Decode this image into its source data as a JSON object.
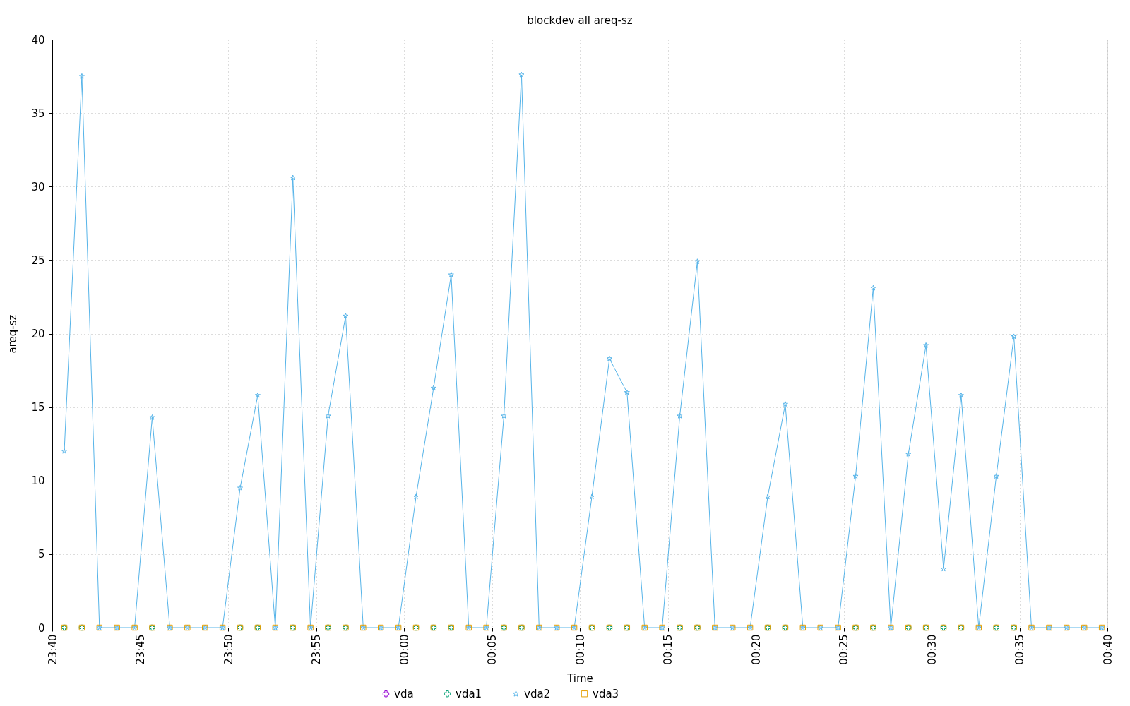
{
  "chart_data": {
    "type": "line",
    "title": "blockdev all areq-sz",
    "xlabel": "Time",
    "ylabel": "areq-sz",
    "x": [
      "2000-01-01T23:40:41",
      "2000-01-01T23:41:41",
      "2000-01-01T23:42:41",
      "2000-01-01T23:43:41",
      "2000-01-01T23:44:41",
      "2000-01-01T23:45:41",
      "2000-01-01T23:46:41",
      "2000-01-01T23:47:41",
      "2000-01-01T23:48:41",
      "2000-01-01T23:49:41",
      "2000-01-01T23:50:41",
      "2000-01-01T23:51:41",
      "2000-01-01T23:52:41",
      "2000-01-01T23:53:41",
      "2000-01-01T23:54:41",
      "2000-01-01T23:55:41",
      "2000-01-01T23:56:41",
      "2000-01-01T23:57:41",
      "2000-01-01T23:58:41",
      "2000-01-01T23:59:41",
      "2000-01-02T00:00:41",
      "2000-01-02T00:01:41",
      "2000-01-02T00:02:41",
      "2000-01-02T00:03:41",
      "2000-01-02T00:04:41",
      "2000-01-02T00:05:41",
      "2000-01-02T00:06:41",
      "2000-01-02T00:07:41",
      "2000-01-02T00:08:41",
      "2000-01-02T00:09:41",
      "2000-01-02T00:10:41",
      "2000-01-02T00:11:41",
      "2000-01-02T00:12:41",
      "2000-01-02T00:13:41",
      "2000-01-02T00:14:41",
      "2000-01-02T00:15:41",
      "2000-01-02T00:16:41",
      "2000-01-02T00:17:41",
      "2000-01-02T00:18:41",
      "2000-01-02T00:19:41",
      "2000-01-02T00:20:41",
      "2000-01-02T00:21:41",
      "2000-01-02T00:22:41",
      "2000-01-02T00:23:41",
      "2000-01-02T00:24:41",
      "2000-01-02T00:25:41",
      "2000-01-02T00:26:41",
      "2000-01-02T00:27:41",
      "2000-01-02T00:28:41",
      "2000-01-02T00:29:41",
      "2000-01-02T00:30:41",
      "2000-01-02T00:31:41",
      "2000-01-02T00:32:41",
      "2000-01-02T00:33:41",
      "2000-01-02T00:34:41",
      "2000-01-02T00:35:41",
      "2000-01-02T00:36:41",
      "2000-01-02T00:37:41",
      "2000-01-02T00:38:41",
      "2000-01-02T00:39:41"
    ],
    "xlim": [
      "2000-01-01T23:40",
      "2000-01-02T00:40"
    ],
    "xticks": [
      {
        "value": "2000-01-01T23:40",
        "label": "23:40"
      },
      {
        "value": "2000-01-01T23:45",
        "label": "23:45"
      },
      {
        "value": "2000-01-01T23:50",
        "label": "23:50"
      },
      {
        "value": "2000-01-01T23:55",
        "label": "23:55"
      },
      {
        "value": "2000-01-02T00:00",
        "label": "00:00"
      },
      {
        "value": "2000-01-02T00:05",
        "label": "00:05"
      },
      {
        "value": "2000-01-02T00:10",
        "label": "00:10"
      },
      {
        "value": "2000-01-02T00:15",
        "label": "00:15"
      },
      {
        "value": "2000-01-02T00:20",
        "label": "00:20"
      },
      {
        "value": "2000-01-02T00:25",
        "label": "00:25"
      },
      {
        "value": "2000-01-02T00:30",
        "label": "00:30"
      },
      {
        "value": "2000-01-02T00:35",
        "label": "00:35"
      },
      {
        "value": "2000-01-02T00:40",
        "label": "00:40"
      }
    ],
    "ylim": [
      0,
      40
    ],
    "yticks": [
      0,
      5,
      10,
      15,
      20,
      25,
      30,
      35,
      40
    ],
    "grid": true,
    "legend": "bottom",
    "line_style": "solid",
    "series": [
      {
        "name": "vda",
        "color": "#9400d3",
        "marker": "cross",
        "values": [
          null,
          null,
          null,
          null,
          null,
          null,
          null,
          null,
          null,
          null,
          null,
          null,
          null,
          null,
          null,
          null,
          null,
          null,
          null,
          null,
          null,
          null,
          null,
          null,
          null,
          null,
          null,
          null,
          null,
          null,
          null,
          null,
          null,
          null,
          null,
          null,
          null,
          null,
          null,
          null,
          null,
          null,
          null,
          null,
          null,
          null,
          null,
          null,
          null,
          null,
          null,
          null,
          null,
          null,
          null,
          null,
          null,
          null,
          null,
          null
        ]
      },
      {
        "name": "vda1",
        "color": "#009e73",
        "type": "scatter",
        "marker": "cross",
        "values": [
          0,
          0,
          null,
          null,
          null,
          0,
          null,
          null,
          null,
          null,
          0,
          0,
          null,
          0,
          null,
          0,
          0,
          null,
          null,
          null,
          0,
          0,
          0,
          null,
          null,
          0,
          0,
          null,
          null,
          null,
          0,
          0,
          0,
          null,
          null,
          0,
          0,
          null,
          null,
          null,
          0,
          0,
          null,
          null,
          null,
          0,
          0,
          null,
          0,
          0,
          0,
          0,
          null,
          0,
          0,
          null,
          null,
          null,
          null,
          null
        ]
      },
      {
        "name": "vda2",
        "color": "#56b4e9",
        "marker": "star",
        "values": [
          12.0,
          37.5,
          0,
          0,
          0,
          14.3,
          0,
          0,
          0,
          0,
          9.5,
          15.8,
          0,
          30.6,
          0,
          14.4,
          21.2,
          0,
          0,
          0,
          8.9,
          16.3,
          24.0,
          0,
          0,
          14.4,
          37.6,
          0,
          0,
          0,
          8.9,
          18.3,
          16.0,
          0,
          0,
          14.4,
          24.9,
          0,
          0,
          0,
          8.9,
          15.2,
          0,
          0,
          0,
          10.3,
          23.1,
          0,
          11.8,
          19.2,
          4.0,
          15.8,
          0,
          10.3,
          19.8,
          0,
          0,
          0,
          0,
          0
        ]
      },
      {
        "name": "vda3",
        "color": "#e69f00",
        "type": "scatter",
        "marker": "square",
        "values": [
          0,
          0,
          0,
          0,
          0,
          0,
          0,
          0,
          0,
          0,
          0,
          0,
          0,
          0,
          0,
          0,
          0,
          0,
          0,
          0,
          0,
          0,
          0,
          0,
          0,
          0,
          0,
          0,
          0,
          0,
          0,
          0,
          0,
          0,
          0,
          0,
          0,
          0,
          0,
          0,
          0,
          0,
          0,
          0,
          0,
          0,
          0,
          0,
          0,
          0,
          0,
          0,
          0,
          0,
          0,
          0,
          0,
          0,
          0,
          0
        ]
      }
    ]
  }
}
